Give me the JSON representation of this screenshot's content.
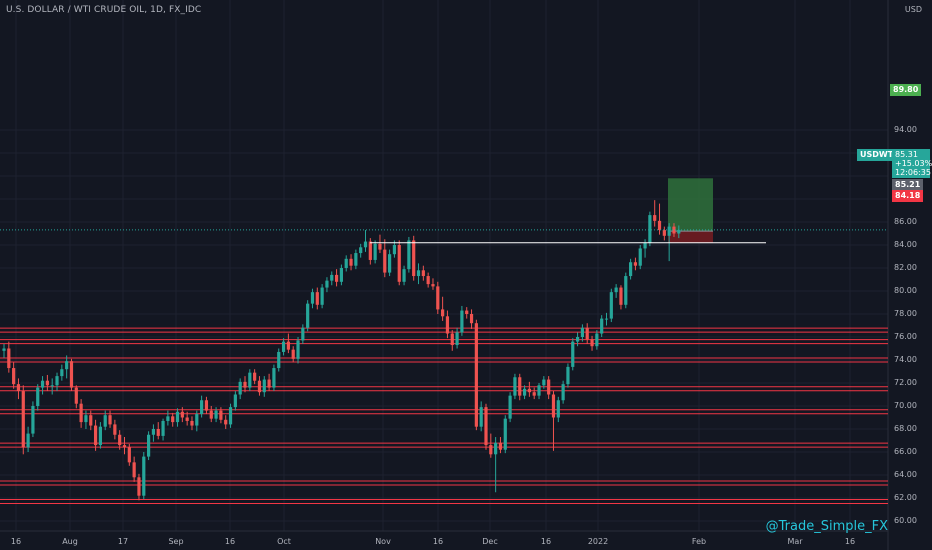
{
  "header": {
    "symbol_title": "U.S. DOLLAR / WTI CRUDE OIL, 1D, FX_IDC",
    "currency": "USD"
  },
  "watermark": "@Trade_Simple_FX",
  "price_tags": {
    "target": "89.80",
    "symbol": "USDWTI",
    "last_price": "85.31",
    "change": "+15.03%",
    "countdown": "12:06:35",
    "entry": "85.21",
    "stop": "84.18"
  },
  "colors": {
    "background": "#131722",
    "up": "#26a69a",
    "down": "#ef5350",
    "level_line": "#f23645",
    "profit_zone": "#2e6b3a",
    "loss_zone": "#6b1b22",
    "text": "#b2b5be"
  },
  "chart_data": {
    "type": "candlestick",
    "title": "U.S. DOLLAR / WTI CRUDE OIL, 1D, FX_IDC",
    "ylim": [
      59.5,
      95.5
    ],
    "y_ticks": [
      "60.00",
      "62.00",
      "64.00",
      "66.00",
      "68.00",
      "70.00",
      "72.00",
      "74.00",
      "76.00",
      "78.00",
      "80.00",
      "82.00",
      "84.00",
      "86.00",
      "88.00",
      "90.00",
      "92.00",
      "94.00"
    ],
    "x_ticks": [
      "16",
      "Aug",
      "17",
      "Sep",
      "16",
      "Oct",
      "Nov",
      "16",
      "Dec",
      "16",
      "2022",
      "Feb",
      "Mar",
      "16"
    ],
    "grid": true,
    "horizontal_levels": [
      76.6,
      75.6,
      74.0,
      71.5,
      69.5,
      66.6,
      63.3,
      61.7
    ],
    "trend_line": {
      "from": "Oct 26",
      "to": "Jan 31",
      "value": 84.2
    },
    "long_position": {
      "entry": 85.21,
      "target": 89.8,
      "stop": 84.18,
      "from": "Jan 26",
      "to": "Feb 1"
    },
    "ohlc": [
      {
        "date": "Jul 13",
        "o": 74.8,
        "h": 75.4,
        "l": 74.2,
        "c": 75.0
      },
      {
        "date": "Jul 14",
        "o": 75.0,
        "h": 75.6,
        "l": 72.9,
        "c": 73.3
      },
      {
        "date": "Jul 15",
        "o": 73.3,
        "h": 73.8,
        "l": 71.5,
        "c": 71.9
      },
      {
        "date": "Jul 16",
        "o": 71.9,
        "h": 72.4,
        "l": 70.6,
        "c": 71.3
      },
      {
        "date": "Jul 19",
        "o": 71.3,
        "h": 71.8,
        "l": 65.8,
        "c": 66.4
      },
      {
        "date": "Jul 20",
        "o": 66.4,
        "h": 68.2,
        "l": 66.0,
        "c": 67.6
      },
      {
        "date": "Jul 21",
        "o": 67.6,
        "h": 70.4,
        "l": 67.3,
        "c": 70.0
      },
      {
        "date": "Jul 22",
        "o": 70.0,
        "h": 71.9,
        "l": 69.6,
        "c": 71.6
      },
      {
        "date": "Jul 23",
        "o": 71.6,
        "h": 72.6,
        "l": 71.0,
        "c": 72.2
      },
      {
        "date": "Jul 26",
        "o": 72.2,
        "h": 72.7,
        "l": 71.3,
        "c": 71.8
      },
      {
        "date": "Jul 27",
        "o": 71.8,
        "h": 72.4,
        "l": 71.0,
        "c": 71.8
      },
      {
        "date": "Jul 28",
        "o": 71.8,
        "h": 72.9,
        "l": 71.3,
        "c": 72.6
      },
      {
        "date": "Jul 29",
        "o": 72.6,
        "h": 73.6,
        "l": 72.2,
        "c": 73.2
      },
      {
        "date": "Jul 30",
        "o": 73.2,
        "h": 74.4,
        "l": 72.4,
        "c": 73.9
      },
      {
        "date": "Aug 2",
        "o": 73.9,
        "h": 74.1,
        "l": 71.3,
        "c": 71.6
      },
      {
        "date": "Aug 3",
        "o": 71.6,
        "h": 71.8,
        "l": 69.8,
        "c": 70.2
      },
      {
        "date": "Aug 4",
        "o": 70.2,
        "h": 70.6,
        "l": 68.1,
        "c": 68.6
      },
      {
        "date": "Aug 5",
        "o": 68.6,
        "h": 69.6,
        "l": 68.0,
        "c": 69.2
      },
      {
        "date": "Aug 6",
        "o": 69.2,
        "h": 69.6,
        "l": 67.9,
        "c": 68.3
      },
      {
        "date": "Aug 9",
        "o": 68.3,
        "h": 68.8,
        "l": 66.1,
        "c": 66.6
      },
      {
        "date": "Aug 10",
        "o": 66.6,
        "h": 68.6,
        "l": 66.3,
        "c": 68.2
      },
      {
        "date": "Aug 11",
        "o": 68.2,
        "h": 69.6,
        "l": 67.9,
        "c": 69.2
      },
      {
        "date": "Aug 12",
        "o": 69.2,
        "h": 69.6,
        "l": 68.1,
        "c": 68.4
      },
      {
        "date": "Aug 13",
        "o": 68.4,
        "h": 68.8,
        "l": 67.1,
        "c": 67.5
      },
      {
        "date": "Aug 16",
        "o": 67.5,
        "h": 67.9,
        "l": 66.2,
        "c": 66.6
      },
      {
        "date": "Aug 17",
        "o": 66.6,
        "h": 67.3,
        "l": 65.8,
        "c": 66.4
      },
      {
        "date": "Aug 18",
        "o": 66.4,
        "h": 66.7,
        "l": 64.8,
        "c": 65.1
      },
      {
        "date": "Aug 19",
        "o": 65.1,
        "h": 65.6,
        "l": 63.4,
        "c": 63.8
      },
      {
        "date": "Aug 20",
        "o": 63.8,
        "h": 64.1,
        "l": 61.8,
        "c": 62.2
      },
      {
        "date": "Aug 23",
        "o": 62.2,
        "h": 66.0,
        "l": 61.9,
        "c": 65.6
      },
      {
        "date": "Aug 24",
        "o": 65.6,
        "h": 67.8,
        "l": 65.3,
        "c": 67.5
      },
      {
        "date": "Aug 25",
        "o": 67.5,
        "h": 68.4,
        "l": 66.9,
        "c": 68.0
      },
      {
        "date": "Aug 26",
        "o": 68.0,
        "h": 68.6,
        "l": 67.1,
        "c": 67.4
      },
      {
        "date": "Aug 27",
        "o": 67.4,
        "h": 68.9,
        "l": 67.0,
        "c": 68.7
      },
      {
        "date": "Aug 30",
        "o": 68.7,
        "h": 69.6,
        "l": 68.3,
        "c": 69.1
      },
      {
        "date": "Aug 31",
        "o": 69.1,
        "h": 69.4,
        "l": 68.2,
        "c": 68.6
      },
      {
        "date": "Sep 1",
        "o": 68.6,
        "h": 69.8,
        "l": 68.2,
        "c": 69.5
      },
      {
        "date": "Sep 2",
        "o": 69.5,
        "h": 69.9,
        "l": 68.6,
        "c": 69.0
      },
      {
        "date": "Sep 3",
        "o": 69.0,
        "h": 69.5,
        "l": 68.3,
        "c": 68.7
      },
      {
        "date": "Sep 6",
        "o": 68.7,
        "h": 69.1,
        "l": 67.9,
        "c": 68.3
      },
      {
        "date": "Sep 7",
        "o": 68.3,
        "h": 69.6,
        "l": 67.8,
        "c": 69.3
      },
      {
        "date": "Sep 8",
        "o": 69.3,
        "h": 70.9,
        "l": 69.0,
        "c": 70.5
      },
      {
        "date": "Sep 9",
        "o": 70.5,
        "h": 70.8,
        "l": 69.3,
        "c": 69.6
      },
      {
        "date": "Sep 10",
        "o": 69.6,
        "h": 70.0,
        "l": 68.6,
        "c": 68.9
      },
      {
        "date": "Sep 13",
        "o": 68.9,
        "h": 69.9,
        "l": 68.6,
        "c": 69.6
      },
      {
        "date": "Sep 14",
        "o": 69.6,
        "h": 69.9,
        "l": 68.5,
        "c": 68.8
      },
      {
        "date": "Sep 15",
        "o": 68.8,
        "h": 69.2,
        "l": 68.0,
        "c": 68.4
      },
      {
        "date": "Sep 16",
        "o": 68.4,
        "h": 70.2,
        "l": 68.1,
        "c": 69.9
      },
      {
        "date": "Sep 17",
        "o": 69.9,
        "h": 71.3,
        "l": 69.6,
        "c": 71.0
      },
      {
        "date": "Sep 20",
        "o": 71.0,
        "h": 72.4,
        "l": 70.6,
        "c": 72.1
      },
      {
        "date": "Sep 21",
        "o": 72.1,
        "h": 72.6,
        "l": 71.2,
        "c": 71.6
      },
      {
        "date": "Sep 22",
        "o": 71.6,
        "h": 73.2,
        "l": 71.3,
        "c": 72.9
      },
      {
        "date": "Sep 23",
        "o": 72.9,
        "h": 73.2,
        "l": 71.9,
        "c": 72.2
      },
      {
        "date": "Sep 24",
        "o": 72.2,
        "h": 72.6,
        "l": 70.9,
        "c": 71.2
      },
      {
        "date": "Sep 27",
        "o": 71.2,
        "h": 72.6,
        "l": 70.8,
        "c": 72.3
      },
      {
        "date": "Sep 28",
        "o": 72.3,
        "h": 72.8,
        "l": 71.3,
        "c": 71.6
      },
      {
        "date": "Sep 29",
        "o": 71.6,
        "h": 73.6,
        "l": 71.3,
        "c": 73.3
      },
      {
        "date": "Sep 30",
        "o": 73.3,
        "h": 75.0,
        "l": 73.0,
        "c": 74.7
      },
      {
        "date": "Oct 1",
        "o": 74.7,
        "h": 75.9,
        "l": 74.4,
        "c": 75.6
      },
      {
        "date": "Oct 4",
        "o": 75.6,
        "h": 76.3,
        "l": 74.6,
        "c": 74.9
      },
      {
        "date": "Oct 5",
        "o": 74.9,
        "h": 75.2,
        "l": 73.8,
        "c": 74.1
      },
      {
        "date": "Oct 6",
        "o": 74.1,
        "h": 76.0,
        "l": 73.7,
        "c": 75.7
      },
      {
        "date": "Oct 7",
        "o": 75.7,
        "h": 77.1,
        "l": 75.4,
        "c": 76.8
      },
      {
        "date": "Oct 8",
        "o": 76.8,
        "h": 79.2,
        "l": 76.5,
        "c": 78.9
      },
      {
        "date": "Oct 11",
        "o": 78.9,
        "h": 80.2,
        "l": 78.5,
        "c": 79.9
      },
      {
        "date": "Oct 12",
        "o": 79.9,
        "h": 80.3,
        "l": 78.4,
        "c": 78.8
      },
      {
        "date": "Oct 13",
        "o": 78.8,
        "h": 80.6,
        "l": 78.5,
        "c": 80.3
      },
      {
        "date": "Oct 14",
        "o": 80.3,
        "h": 81.2,
        "l": 79.9,
        "c": 80.9
      },
      {
        "date": "Oct 15",
        "o": 80.9,
        "h": 81.7,
        "l": 80.5,
        "c": 81.4
      },
      {
        "date": "Oct 18",
        "o": 81.4,
        "h": 81.9,
        "l": 80.4,
        "c": 80.8
      },
      {
        "date": "Oct 19",
        "o": 80.8,
        "h": 82.3,
        "l": 80.5,
        "c": 82.0
      },
      {
        "date": "Oct 20",
        "o": 82.0,
        "h": 83.1,
        "l": 81.7,
        "c": 82.8
      },
      {
        "date": "Oct 21",
        "o": 82.8,
        "h": 83.2,
        "l": 81.8,
        "c": 82.2
      },
      {
        "date": "Oct 22",
        "o": 82.2,
        "h": 83.6,
        "l": 81.9,
        "c": 83.3
      },
      {
        "date": "Oct 25",
        "o": 83.3,
        "h": 84.1,
        "l": 82.9,
        "c": 83.8
      },
      {
        "date": "Oct 26",
        "o": 83.8,
        "h": 85.3,
        "l": 83.4,
        "c": 84.3
      },
      {
        "date": "Oct 27",
        "o": 84.3,
        "h": 84.6,
        "l": 82.3,
        "c": 82.7
      },
      {
        "date": "Oct 28",
        "o": 82.7,
        "h": 84.4,
        "l": 82.4,
        "c": 84.1
      },
      {
        "date": "Oct 29",
        "o": 84.1,
        "h": 84.9,
        "l": 83.3,
        "c": 83.6
      },
      {
        "date": "Nov 1",
        "o": 83.6,
        "h": 84.5,
        "l": 81.2,
        "c": 81.6
      },
      {
        "date": "Nov 2",
        "o": 81.6,
        "h": 83.6,
        "l": 81.3,
        "c": 83.2
      },
      {
        "date": "Nov 3",
        "o": 83.2,
        "h": 84.4,
        "l": 82.9,
        "c": 84.0
      },
      {
        "date": "Nov 4",
        "o": 84.0,
        "h": 84.4,
        "l": 80.5,
        "c": 80.8
      },
      {
        "date": "Nov 5",
        "o": 80.8,
        "h": 82.2,
        "l": 80.5,
        "c": 81.9
      },
      {
        "date": "Nov 8",
        "o": 81.9,
        "h": 84.7,
        "l": 81.6,
        "c": 84.4
      },
      {
        "date": "Nov 9",
        "o": 84.4,
        "h": 84.8,
        "l": 80.9,
        "c": 81.3
      },
      {
        "date": "Nov 10",
        "o": 81.3,
        "h": 82.4,
        "l": 80.6,
        "c": 81.8
      },
      {
        "date": "Nov 11",
        "o": 81.8,
        "h": 82.2,
        "l": 80.9,
        "c": 81.3
      },
      {
        "date": "Nov 12",
        "o": 81.3,
        "h": 81.6,
        "l": 80.3,
        "c": 80.6
      },
      {
        "date": "Nov 15",
        "o": 80.6,
        "h": 81.1,
        "l": 80.1,
        "c": 80.4
      },
      {
        "date": "Nov 16",
        "o": 80.4,
        "h": 80.8,
        "l": 78.0,
        "c": 78.4
      },
      {
        "date": "Nov 17",
        "o": 78.4,
        "h": 79.5,
        "l": 77.4,
        "c": 77.8
      },
      {
        "date": "Nov 18",
        "o": 77.8,
        "h": 78.3,
        "l": 75.9,
        "c": 76.3
      },
      {
        "date": "Nov 19",
        "o": 76.3,
        "h": 76.6,
        "l": 74.8,
        "c": 75.3
      },
      {
        "date": "Nov 22",
        "o": 75.3,
        "h": 76.8,
        "l": 75.0,
        "c": 76.4
      },
      {
        "date": "Nov 23",
        "o": 76.4,
        "h": 78.7,
        "l": 76.1,
        "c": 78.3
      },
      {
        "date": "Nov 24",
        "o": 78.3,
        "h": 78.6,
        "l": 77.6,
        "c": 78.0
      },
      {
        "date": "Nov 25",
        "o": 78.0,
        "h": 78.4,
        "l": 76.7,
        "c": 77.2
      },
      {
        "date": "Nov 26",
        "o": 77.2,
        "h": 77.5,
        "l": 67.9,
        "c": 68.2
      },
      {
        "date": "Nov 29",
        "o": 68.2,
        "h": 70.4,
        "l": 67.8,
        "c": 69.9
      },
      {
        "date": "Nov 30",
        "o": 69.9,
        "h": 70.2,
        "l": 66.2,
        "c": 66.6
      },
      {
        "date": "Dec 1",
        "o": 66.6,
        "h": 67.6,
        "l": 65.5,
        "c": 65.8
      },
      {
        "date": "Dec 2",
        "o": 65.8,
        "h": 67.3,
        "l": 62.5,
        "c": 66.8
      },
      {
        "date": "Dec 3",
        "o": 66.8,
        "h": 67.3,
        "l": 65.9,
        "c": 66.2
      },
      {
        "date": "Dec 6",
        "o": 66.2,
        "h": 69.2,
        "l": 65.9,
        "c": 68.9
      },
      {
        "date": "Dec 7",
        "o": 68.9,
        "h": 71.2,
        "l": 68.6,
        "c": 70.9
      },
      {
        "date": "Dec 8",
        "o": 70.9,
        "h": 72.8,
        "l": 70.6,
        "c": 72.5
      },
      {
        "date": "Dec 9",
        "o": 72.5,
        "h": 72.8,
        "l": 70.5,
        "c": 70.9
      },
      {
        "date": "Dec 10",
        "o": 70.9,
        "h": 71.8,
        "l": 70.6,
        "c": 71.5
      },
      {
        "date": "Dec 13",
        "o": 71.5,
        "h": 72.1,
        "l": 70.8,
        "c": 71.2
      },
      {
        "date": "Dec 14",
        "o": 71.2,
        "h": 71.6,
        "l": 70.6,
        "c": 70.9
      },
      {
        "date": "Dec 15",
        "o": 70.9,
        "h": 72.0,
        "l": 70.6,
        "c": 71.8
      },
      {
        "date": "Dec 16",
        "o": 71.8,
        "h": 72.6,
        "l": 71.5,
        "c": 72.3
      },
      {
        "date": "Dec 17",
        "o": 72.3,
        "h": 72.6,
        "l": 70.6,
        "c": 71.0
      },
      {
        "date": "Dec 20",
        "o": 71.0,
        "h": 71.3,
        "l": 66.1,
        "c": 69.0
      },
      {
        "date": "Dec 21",
        "o": 69.0,
        "h": 70.8,
        "l": 68.6,
        "c": 70.5
      },
      {
        "date": "Dec 22",
        "o": 70.5,
        "h": 72.2,
        "l": 70.2,
        "c": 71.9
      },
      {
        "date": "Dec 23",
        "o": 71.9,
        "h": 73.7,
        "l": 71.6,
        "c": 73.4
      },
      {
        "date": "Dec 27",
        "o": 73.4,
        "h": 75.9,
        "l": 73.1,
        "c": 75.6
      },
      {
        "date": "Dec 28",
        "o": 75.6,
        "h": 76.4,
        "l": 75.2,
        "c": 76.0
      },
      {
        "date": "Dec 29",
        "o": 76.0,
        "h": 77.1,
        "l": 75.6,
        "c": 76.8
      },
      {
        "date": "Dec 30",
        "o": 76.8,
        "h": 77.2,
        "l": 75.4,
        "c": 75.8
      },
      {
        "date": "Dec 31",
        "o": 75.8,
        "h": 76.1,
        "l": 74.8,
        "c": 75.2
      },
      {
        "date": "Jan 3",
        "o": 75.2,
        "h": 76.6,
        "l": 74.9,
        "c": 76.3
      },
      {
        "date": "Jan 4",
        "o": 76.3,
        "h": 77.9,
        "l": 76.0,
        "c": 77.6
      },
      {
        "date": "Jan 5",
        "o": 77.6,
        "h": 78.1,
        "l": 77.0,
        "c": 77.6
      },
      {
        "date": "Jan 6",
        "o": 77.6,
        "h": 80.2,
        "l": 77.3,
        "c": 79.9
      },
      {
        "date": "Jan 7",
        "o": 79.9,
        "h": 80.6,
        "l": 79.4,
        "c": 80.3
      },
      {
        "date": "Jan 10",
        "o": 80.3,
        "h": 80.5,
        "l": 78.4,
        "c": 78.8
      },
      {
        "date": "Jan 11",
        "o": 78.8,
        "h": 81.6,
        "l": 78.5,
        "c": 81.3
      },
      {
        "date": "Jan 12",
        "o": 81.3,
        "h": 82.8,
        "l": 81.0,
        "c": 82.5
      },
      {
        "date": "Jan 13",
        "o": 82.5,
        "h": 82.9,
        "l": 81.8,
        "c": 82.2
      },
      {
        "date": "Jan 14",
        "o": 82.2,
        "h": 84.0,
        "l": 81.9,
        "c": 83.7
      },
      {
        "date": "Jan 17",
        "o": 83.7,
        "h": 84.5,
        "l": 82.9,
        "c": 84.2
      },
      {
        "date": "Jan 18",
        "o": 84.2,
        "h": 86.9,
        "l": 83.9,
        "c": 86.6
      },
      {
        "date": "Jan 19",
        "o": 86.6,
        "h": 87.9,
        "l": 85.6,
        "c": 86.1
      },
      {
        "date": "Jan 20",
        "o": 86.1,
        "h": 87.6,
        "l": 84.9,
        "c": 85.3
      },
      {
        "date": "Jan 21",
        "o": 85.3,
        "h": 85.6,
        "l": 84.4,
        "c": 84.8
      },
      {
        "date": "Jan 24",
        "o": 84.8,
        "h": 85.9,
        "l": 82.6,
        "c": 85.6
      },
      {
        "date": "Jan 25",
        "o": 85.6,
        "h": 85.9,
        "l": 84.7,
        "c": 85.0
      },
      {
        "date": "Jan 26",
        "o": 85.0,
        "h": 85.7,
        "l": 84.6,
        "c": 85.31
      }
    ]
  }
}
